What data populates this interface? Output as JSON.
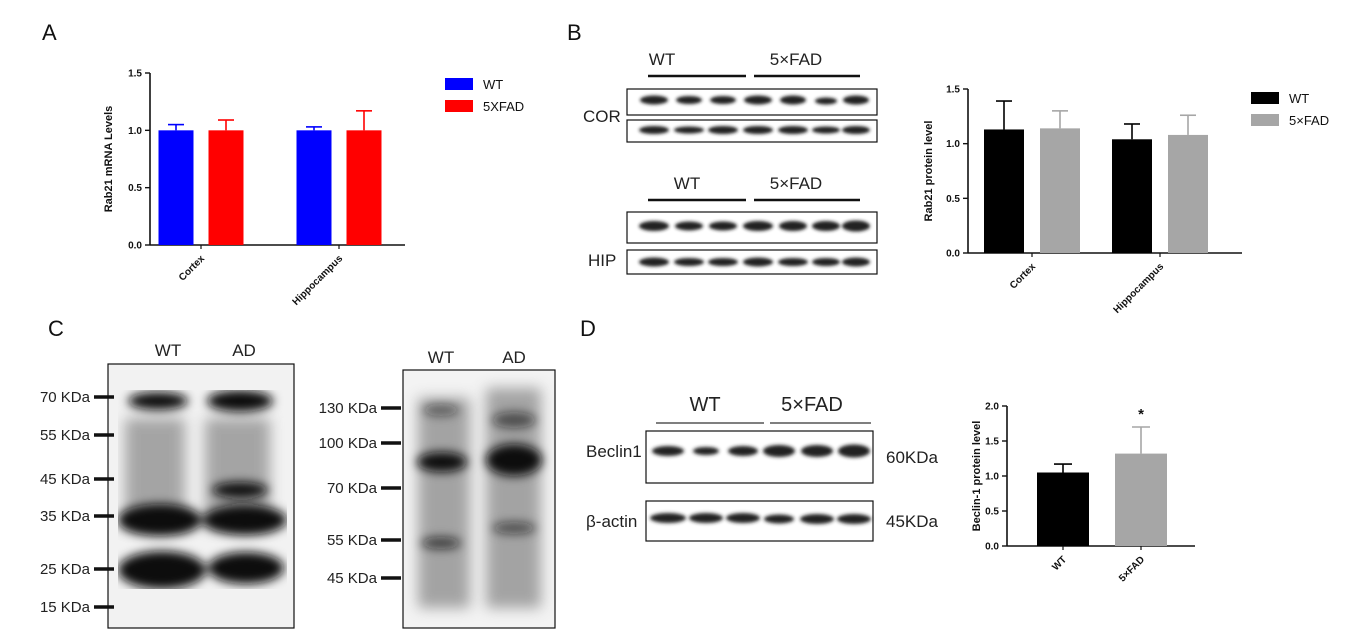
{
  "panels": {
    "A": {
      "letter": "A"
    },
    "B": {
      "letter": "B",
      "cor_label": "COR",
      "hip_label": "HIP",
      "group1": "WT",
      "group2": "5×FAD"
    },
    "C": {
      "letter": "C",
      "blot1_groups": [
        "WT",
        "AD"
      ],
      "blot2_groups": [
        "WT",
        "AD"
      ],
      "blot1_markers": [
        "70 KDa",
        "55 KDa",
        "45 KDa",
        "35 KDa",
        "25 KDa",
        "15 KDa"
      ],
      "blot2_markers": [
        "130 KDa",
        "100 KDa",
        "70 KDa",
        "55 KDa",
        "45 KDa"
      ]
    },
    "D": {
      "letter": "D",
      "group1": "WT",
      "group2": "5×FAD",
      "row1_label": "Beclin1",
      "row2_label": "β-actin",
      "row1_size": "60KDa",
      "row2_size": "45KDa"
    }
  },
  "chart_data": [
    {
      "id": "A",
      "type": "bar",
      "categories": [
        "Cortex",
        "Hippocampus"
      ],
      "series": [
        {
          "name": "WT",
          "values": [
            1.0,
            1.0
          ],
          "errors": [
            0.05,
            0.03
          ],
          "color": "#0000ff"
        },
        {
          "name": "5XFAD",
          "values": [
            1.0,
            1.0
          ],
          "errors": [
            0.09,
            0.17
          ],
          "color": "#ff0000"
        }
      ],
      "ylabel": "Rab21 mRNA  Levels",
      "ylim": [
        0,
        1.5
      ],
      "yticks": [
        "0.0",
        "0.5",
        "1.0",
        "1.5"
      ],
      "legend": "right"
    },
    {
      "id": "B",
      "type": "bar",
      "categories": [
        "Cortex",
        "Hippocampus"
      ],
      "series": [
        {
          "name": "WT",
          "values": [
            1.13,
            1.04
          ],
          "errors": [
            0.26,
            0.14
          ],
          "color": "#000000"
        },
        {
          "name": "5×FAD",
          "values": [
            1.14,
            1.08
          ],
          "errors": [
            0.16,
            0.18
          ],
          "color": "#a6a6a6"
        }
      ],
      "ylabel": "Rab21 protein level",
      "ylim": [
        0,
        1.5
      ],
      "yticks": [
        "0.0",
        "0.5",
        "1.0",
        "1.5"
      ],
      "legend": "right"
    },
    {
      "id": "D",
      "type": "bar",
      "categories": [
        "WT",
        "5×FAD"
      ],
      "series": [
        {
          "name": "",
          "values": [
            1.05,
            1.32
          ],
          "errors": [
            0.12,
            0.38
          ],
          "colors": [
            "#000000",
            "#a6a6a6"
          ]
        }
      ],
      "ylabel": "Beclin-1 protein level",
      "ylim": [
        0,
        2.0
      ],
      "yticks": [
        "0.0",
        "0.5",
        "1.0",
        "1.5",
        "2.0"
      ],
      "annotation": "*"
    }
  ]
}
